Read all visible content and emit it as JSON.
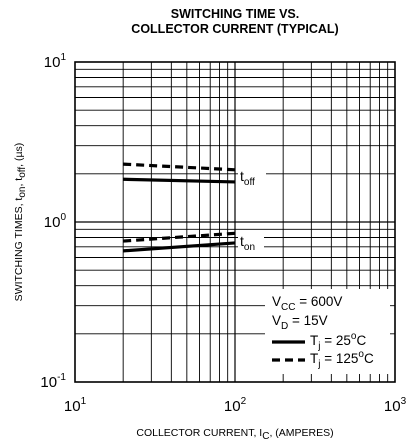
{
  "chart_data": {
    "type": "line",
    "title": [
      "SWITCHING TIME VS.",
      "COLLECTOR CURRENT (TYPICAL)"
    ],
    "xlabel": {
      "main": "COLLECTOR CURRENT, I",
      "sub": "C",
      "suffix": ", (AMPERES)"
    },
    "ylabel": {
      "main": "SWITCHING TIMES, t",
      "sub1": "on",
      "mid": ", t",
      "sub2": "off",
      "suffix": ", (µs)"
    },
    "x_scale": "log",
    "y_scale": "log",
    "xlim": [
      10,
      1000
    ],
    "ylim": [
      0.1,
      10
    ],
    "x_ticks": [
      {
        "value": 10,
        "base": "10",
        "exp": "1"
      },
      {
        "value": 100,
        "base": "10",
        "exp": "2"
      },
      {
        "value": 1000,
        "base": "10",
        "exp": "3"
      }
    ],
    "y_ticks": [
      {
        "value": 0.1,
        "base": "10",
        "exp": "-1"
      },
      {
        "value": 1,
        "base": "10",
        "exp": "0"
      },
      {
        "value": 10,
        "base": "10",
        "exp": "1"
      }
    ],
    "grid": true,
    "series": [
      {
        "name": "toff",
        "condition": "Tj = 25°C",
        "style": "solid",
        "x": [
          20,
          100
        ],
        "y": [
          1.85,
          1.78
        ]
      },
      {
        "name": "toff",
        "condition": "Tj = 125°C",
        "style": "dashed",
        "x": [
          20,
          100
        ],
        "y": [
          2.3,
          2.12
        ]
      },
      {
        "name": "ton",
        "condition": "Tj = 25°C",
        "style": "solid",
        "x": [
          20,
          100
        ],
        "y": [
          0.66,
          0.74
        ]
      },
      {
        "name": "ton",
        "condition": "Tj = 125°C",
        "style": "dashed",
        "x": [
          20,
          100
        ],
        "y": [
          0.76,
          0.85
        ]
      }
    ],
    "annotations": [
      {
        "base": "t",
        "sub": "off",
        "x": 100,
        "y": 1.95
      },
      {
        "base": "t",
        "sub": "on",
        "x": 100,
        "y": 0.78
      }
    ],
    "conditions": [
      {
        "prefix": "V",
        "sub": "CC",
        "text": " = 600V"
      },
      {
        "prefix": "V",
        "sub": "D",
        "text": " = 15V"
      }
    ],
    "legend": {
      "placement": "bottom-right",
      "entries": [
        {
          "style": "solid",
          "prefix": "T",
          "sub": "j",
          "text": " = 25",
          "deg": "o",
          "unit": "C"
        },
        {
          "style": "dashed",
          "prefix": "T",
          "sub": "j",
          "text": " = 125",
          "deg": "o",
          "unit": "C"
        }
      ]
    }
  }
}
